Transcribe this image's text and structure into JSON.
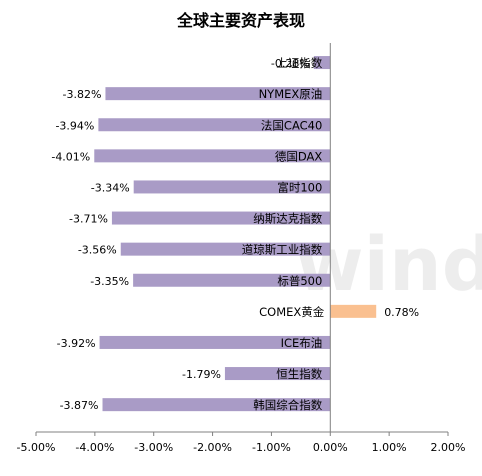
{
  "watermark": "wind",
  "chart_data": {
    "type": "bar",
    "orientation": "horizontal",
    "title": "全球主要资产表现",
    "xlim": [
      -5,
      2
    ],
    "x_ticks": [
      -5,
      -4,
      -3,
      -2,
      -1,
      0,
      1,
      2
    ],
    "x_tick_labels": [
      "-5.00%",
      "-4.00%",
      "-3.00%",
      "-2.00%",
      "-1.00%",
      "0.00%",
      "1.00%",
      "2.00%"
    ],
    "categories": [
      "上证指数",
      "NYMEX原油",
      "法国CAC40",
      "德国DAX",
      "富时100",
      "纳斯达克指数",
      "道琼斯工业指数",
      "标普500",
      "COMEX黄金",
      "ICE布油",
      "恒生指数",
      "韩国综合指数"
    ],
    "values": [
      -0.28,
      -3.82,
      -3.94,
      -4.01,
      -3.34,
      -3.71,
      -3.56,
      -3.35,
      0.78,
      -3.92,
      -1.79,
      -3.87
    ],
    "value_labels": [
      "-0.28%",
      "-3.82%",
      "-3.94%",
      "-4.01%",
      "-3.34%",
      "-3.71%",
      "-3.56%",
      "-3.35%",
      "0.78%",
      "-3.92%",
      "-1.79%",
      "-3.87%"
    ],
    "colors": {
      "negative": "#A99BC6",
      "positive": "#FAC090",
      "axis": "#808080"
    },
    "grid": false,
    "legend": "none"
  }
}
